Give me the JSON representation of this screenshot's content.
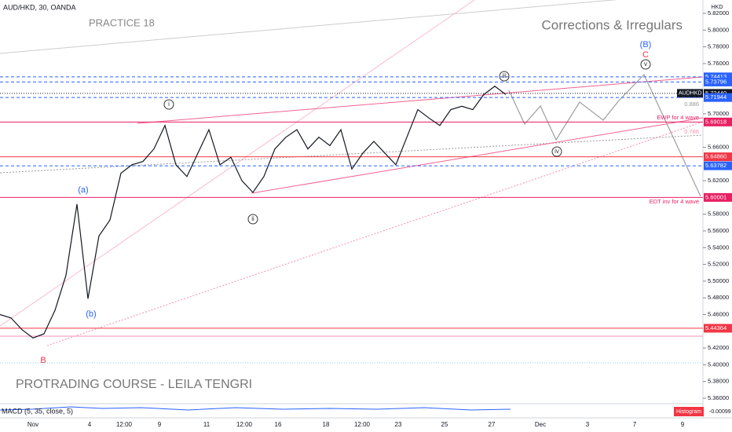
{
  "header": {
    "symbol": "AUD/HKD, 30, OANDA",
    "practice": "PRACTICE 18",
    "topic": "Corrections & Irregulars",
    "course": "PROTRADING COURSE - LEILA TENGRI",
    "currency": "HKD"
  },
  "chart_data": {
    "type": "line",
    "color": "#131722",
    "values": [
      5.46,
      5.456,
      5.442,
      5.432,
      5.437,
      5.465,
      5.507,
      5.592,
      5.479,
      5.554,
      5.573,
      5.629,
      5.639,
      5.643,
      5.658,
      5.686,
      5.639,
      5.625,
      5.653,
      5.681,
      5.639,
      5.648,
      5.62,
      5.606,
      5.625,
      5.658,
      5.672,
      5.681,
      5.658,
      5.672,
      5.662,
      5.681,
      5.634,
      5.653,
      5.667,
      5.653,
      5.639,
      5.672,
      5.705,
      5.695,
      5.686,
      5.705,
      5.709,
      5.705,
      5.723,
      5.733,
      5.723
    ],
    "ylim": [
      5.3525,
      5.836
    ],
    "yticks": [
      {
        "value": 5.36,
        "label": "5.36000"
      },
      {
        "value": 5.38,
        "label": "5.38000"
      },
      {
        "value": 5.4,
        "label": "5.40000"
      },
      {
        "value": 5.42,
        "label": "5.42000"
      },
      {
        "value": 5.46,
        "label": "5.46000"
      },
      {
        "value": 5.48,
        "label": "5.48000"
      },
      {
        "value": 5.5,
        "label": "5.50000"
      },
      {
        "value": 5.52,
        "label": "5.52000"
      },
      {
        "value": 5.54,
        "label": "5.54000"
      },
      {
        "value": 5.56,
        "label": "5.56000"
      },
      {
        "value": 5.58,
        "label": "5.58000"
      },
      {
        "value": 5.62,
        "label": "5.62000"
      },
      {
        "value": 5.66,
        "label": "5.66000"
      },
      {
        "value": 5.7,
        "label": "5.70000"
      },
      {
        "value": 5.76,
        "label": "5.76000"
      },
      {
        "value": 5.78,
        "label": "5.78000"
      },
      {
        "value": 5.8,
        "label": "5.80000"
      },
      {
        "value": 5.82,
        "label": "5.82000"
      }
    ],
    "xlabels": [
      "Nov",
      "4",
      "12:00",
      "9",
      "11",
      "12:00",
      "16",
      "18",
      "12:00",
      "23",
      "25",
      "27",
      "Dec",
      "3",
      "7",
      "9"
    ],
    "levels": [
      {
        "price": 5.74413,
        "color": "#2962ff"
      },
      {
        "price": 5.73796,
        "color": "#2962ff"
      },
      {
        "price": {
          "value": 5.7244,
          "label": "5.72440"
        },
        "color": "#131722",
        "name": "AUDHKD"
      },
      {
        "price": 5.71944,
        "color": "#2962ff"
      },
      {
        "price": 5.69018,
        "color": "#e91e63"
      },
      {
        "price": {
          "value": 5.6486,
          "label": "5.64860"
        },
        "color": "#f23645"
      },
      {
        "price": 5.63782,
        "color": "#2962ff"
      },
      {
        "price": 5.60001,
        "color": "#e91e63"
      },
      {
        "price": 5.44364,
        "color": "#f23645"
      }
    ],
    "notes": [
      "0.886",
      "0.786",
      "EWP for 4 wave",
      "EDT inv for 4 wave"
    ],
    "waves": [
      "(B)",
      "C",
      "v",
      "iii",
      "iv",
      "i",
      "ii",
      "(a)",
      "(b)",
      "B"
    ],
    "indicator": {
      "name": "MACD (5, 35, close, 5)",
      "series": "Histogram",
      "value": "-0.00099"
    }
  }
}
